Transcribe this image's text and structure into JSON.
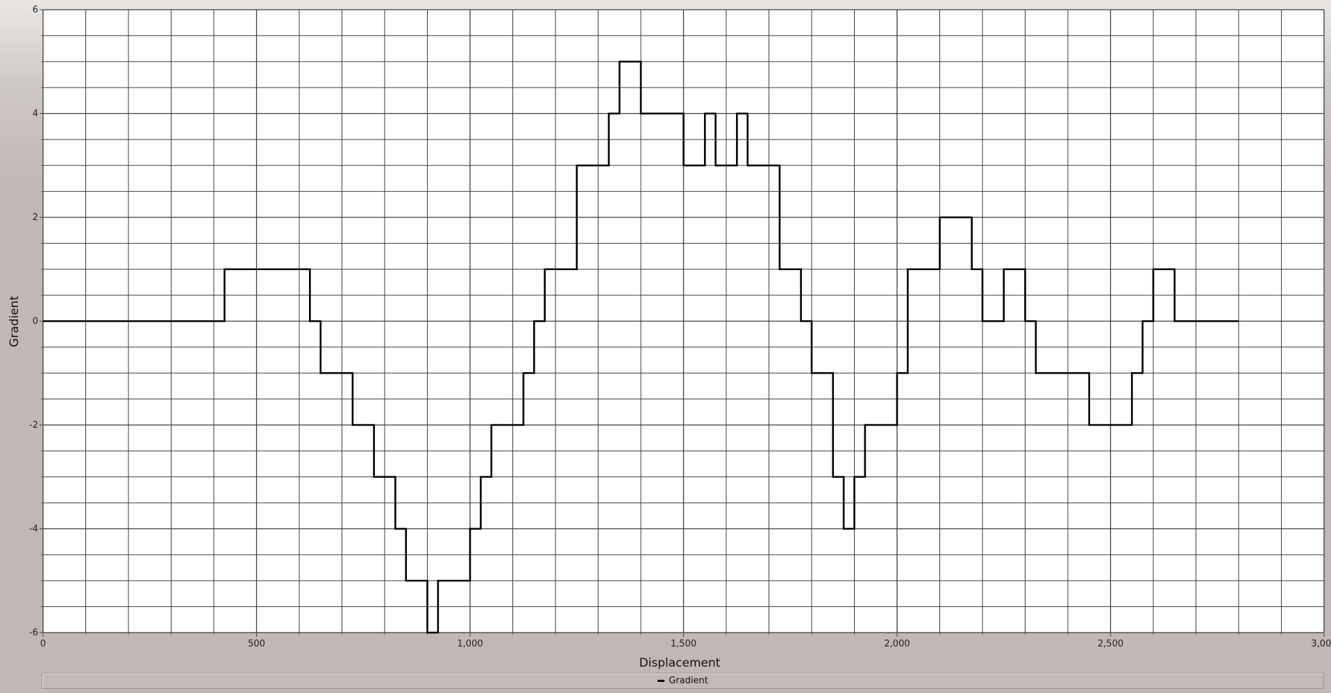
{
  "chart_data": {
    "type": "line",
    "xlabel": "Displacement",
    "ylabel": "Gradient",
    "xlim": [
      0,
      3000
    ],
    "ylim": [
      -6,
      6
    ],
    "x_ticks": [
      "0",
      "500",
      "1,000",
      "1,500",
      "2,000",
      "2,500",
      "3,000"
    ],
    "y_ticks": [
      "6",
      "4",
      "2",
      "0",
      "-2",
      "-4",
      "-6"
    ],
    "grid": true,
    "legend_position": "bottom",
    "series": [
      {
        "name": "Gradient",
        "color": "#000000",
        "step": true,
        "x": [
          0,
          425,
          625,
          650,
          725,
          775,
          825,
          850,
          900,
          925,
          1000,
          1025,
          1050,
          1125,
          1150,
          1175,
          1250,
          1325,
          1350,
          1400,
          1500,
          1550,
          1575,
          1625,
          1650,
          1725,
          1775,
          1800,
          1850,
          1875,
          1900,
          1925,
          2000,
          2025,
          2100,
          2175,
          2200,
          2250,
          2300,
          2325,
          2450,
          2550,
          2575,
          2600,
          2650,
          2800
        ],
        "y": [
          0,
          1,
          0,
          -1,
          -2,
          -3,
          -4,
          -5,
          -6,
          -5,
          -4,
          -3,
          -2,
          -1,
          0,
          1,
          3,
          4,
          5,
          4,
          3,
          4,
          3,
          4,
          3,
          1,
          0,
          -1,
          -3,
          -4,
          -3,
          -2,
          -1,
          1,
          2,
          1,
          0,
          1,
          0,
          -1,
          -2,
          -1,
          0,
          1,
          0,
          0
        ]
      }
    ]
  },
  "legend": {
    "label": "Gradient"
  }
}
